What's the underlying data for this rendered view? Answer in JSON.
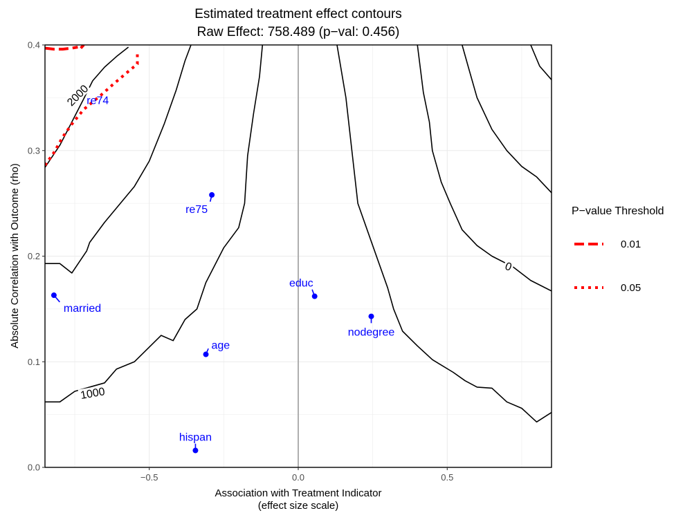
{
  "chart_data": {
    "type": "contour",
    "title": "Estimated treatment effect contours",
    "subtitle": "Raw Effect: 758.489 (p−val: 0.456)",
    "xlabel": "Association with Treatment Indicator",
    "xlabel_sub": "(effect size scale)",
    "ylabel": "Absolute Correlation with Outcome (rho)",
    "xlim": [
      -0.85,
      0.85
    ],
    "ylim": [
      0,
      0.4
    ],
    "x_ticks": [
      -0.5,
      0.0,
      0.5
    ],
    "x_tick_labels": [
      "−0.5",
      "0.0",
      "0.5"
    ],
    "y_ticks": [
      0.0,
      0.1,
      0.2,
      0.3,
      0.4
    ],
    "y_tick_labels": [
      "0.0",
      "0.1",
      "0.2",
      "0.3",
      "0.4"
    ],
    "grid": true,
    "reference_line_x": 0,
    "legend": {
      "title": "P−value Threshold",
      "position": "right",
      "items": [
        {
          "label": "0.01",
          "style": "dashed"
        },
        {
          "label": "0.05",
          "style": "dotted"
        }
      ]
    },
    "colors": {
      "contour": "#000000",
      "threshold": "#ff0000",
      "covariate": "#0000ff",
      "reference": "#a6a6a6",
      "grid": "#ebebeb"
    },
    "contour_labels": [
      {
        "text": "2000",
        "x": -0.74,
        "y": 0.352
      },
      {
        "text": "1000",
        "x": -0.69,
        "y": 0.07
      },
      {
        "text": "0",
        "x": 0.705,
        "y": 0.19
      }
    ],
    "contours": [
      {
        "level": "2000",
        "points": [
          [
            -0.85,
            0.284
          ],
          [
            -0.8,
            0.305
          ],
          [
            -0.76,
            0.327
          ],
          [
            -0.72,
            0.349
          ],
          [
            -0.69,
            0.366
          ],
          [
            -0.65,
            0.379
          ],
          [
            -0.61,
            0.389
          ],
          [
            -0.57,
            0.398
          ]
        ]
      },
      {
        "level": "a",
        "points": [
          [
            -0.85,
            0.193
          ],
          [
            -0.8,
            0.193
          ],
          [
            -0.76,
            0.184
          ],
          [
            -0.71,
            0.205
          ],
          [
            -0.7,
            0.213
          ],
          [
            -0.65,
            0.232
          ],
          [
            -0.6,
            0.249
          ],
          [
            -0.55,
            0.266
          ],
          [
            -0.5,
            0.29
          ],
          [
            -0.45,
            0.325
          ],
          [
            -0.41,
            0.357
          ],
          [
            -0.38,
            0.385
          ],
          [
            -0.36,
            0.4
          ]
        ]
      },
      {
        "level": "1000",
        "points": [
          [
            -0.85,
            0.062
          ],
          [
            -0.8,
            0.062
          ],
          [
            -0.75,
            0.072
          ],
          [
            -0.65,
            0.08
          ],
          [
            -0.61,
            0.093
          ],
          [
            -0.55,
            0.1
          ],
          [
            -0.46,
            0.125
          ],
          [
            -0.42,
            0.12
          ],
          [
            -0.38,
            0.14
          ],
          [
            -0.34,
            0.15
          ],
          [
            -0.31,
            0.175
          ],
          [
            -0.25,
            0.208
          ],
          [
            -0.2,
            0.227
          ],
          [
            -0.18,
            0.25
          ],
          [
            -0.17,
            0.295
          ],
          [
            -0.15,
            0.335
          ],
          [
            -0.13,
            0.37
          ],
          [
            -0.12,
            0.4
          ]
        ]
      },
      {
        "level": "b",
        "points": [
          [
            0.13,
            0.4
          ],
          [
            0.16,
            0.35
          ],
          [
            0.18,
            0.3
          ],
          [
            0.2,
            0.25
          ],
          [
            0.25,
            0.21
          ],
          [
            0.3,
            0.17
          ],
          [
            0.32,
            0.15
          ],
          [
            0.35,
            0.129
          ],
          [
            0.4,
            0.115
          ],
          [
            0.45,
            0.102
          ],
          [
            0.52,
            0.09
          ],
          [
            0.56,
            0.082
          ],
          [
            0.6,
            0.076
          ],
          [
            0.65,
            0.075
          ],
          [
            0.7,
            0.062
          ],
          [
            0.75,
            0.056
          ],
          [
            0.8,
            0.043
          ],
          [
            0.85,
            0.052
          ]
        ]
      },
      {
        "level": "0",
        "points": [
          [
            0.4,
            0.4
          ],
          [
            0.42,
            0.355
          ],
          [
            0.44,
            0.327
          ],
          [
            0.45,
            0.3
          ],
          [
            0.48,
            0.27
          ],
          [
            0.51,
            0.25
          ],
          [
            0.55,
            0.225
          ],
          [
            0.6,
            0.21
          ],
          [
            0.65,
            0.2
          ],
          [
            0.72,
            0.19
          ],
          [
            0.78,
            0.177
          ],
          [
            0.85,
            0.167
          ]
        ]
      },
      {
        "level": "c",
        "points": [
          [
            0.55,
            0.4
          ],
          [
            0.57,
            0.38
          ],
          [
            0.6,
            0.35
          ],
          [
            0.65,
            0.32
          ],
          [
            0.7,
            0.3
          ],
          [
            0.75,
            0.285
          ],
          [
            0.8,
            0.275
          ],
          [
            0.85,
            0.26
          ]
        ]
      },
      {
        "level": "d",
        "points": [
          [
            0.78,
            0.4
          ],
          [
            0.81,
            0.38
          ],
          [
            0.85,
            0.367
          ]
        ]
      }
    ],
    "thresholds": [
      {
        "label": "0.01",
        "style": "dashed",
        "points": [
          [
            -0.85,
            0.397
          ],
          [
            -0.82,
            0.396
          ],
          [
            -0.79,
            0.396
          ],
          [
            -0.76,
            0.397
          ],
          [
            -0.74,
            0.398
          ]
        ]
      },
      {
        "label": "0.01",
        "style": "dashed",
        "points": [
          [
            -0.73,
            0.397
          ],
          [
            -0.72,
            0.4
          ]
        ]
      },
      {
        "label": "0.05",
        "style": "dotted",
        "points": [
          [
            -0.85,
            0.286
          ],
          [
            -0.82,
            0.298
          ],
          [
            -0.79,
            0.313
          ],
          [
            -0.76,
            0.325
          ],
          [
            -0.72,
            0.339
          ],
          [
            -0.69,
            0.346
          ],
          [
            -0.66,
            0.353
          ],
          [
            -0.62,
            0.363
          ],
          [
            -0.57,
            0.375
          ],
          [
            -0.54,
            0.382
          ],
          [
            -0.54,
            0.393
          ]
        ]
      }
    ],
    "covariates": [
      {
        "name": "re74",
        "x": -0.67,
        "y": 0.355
      },
      {
        "name": "re75",
        "x": -0.29,
        "y": 0.258
      },
      {
        "name": "married",
        "x": -0.82,
        "y": 0.163
      },
      {
        "name": "educ",
        "x": 0.055,
        "y": 0.162
      },
      {
        "name": "nodegree",
        "x": 0.245,
        "y": 0.143
      },
      {
        "name": "age",
        "x": -0.31,
        "y": 0.107
      },
      {
        "name": "hispan",
        "x": -0.345,
        "y": 0.016
      }
    ]
  }
}
